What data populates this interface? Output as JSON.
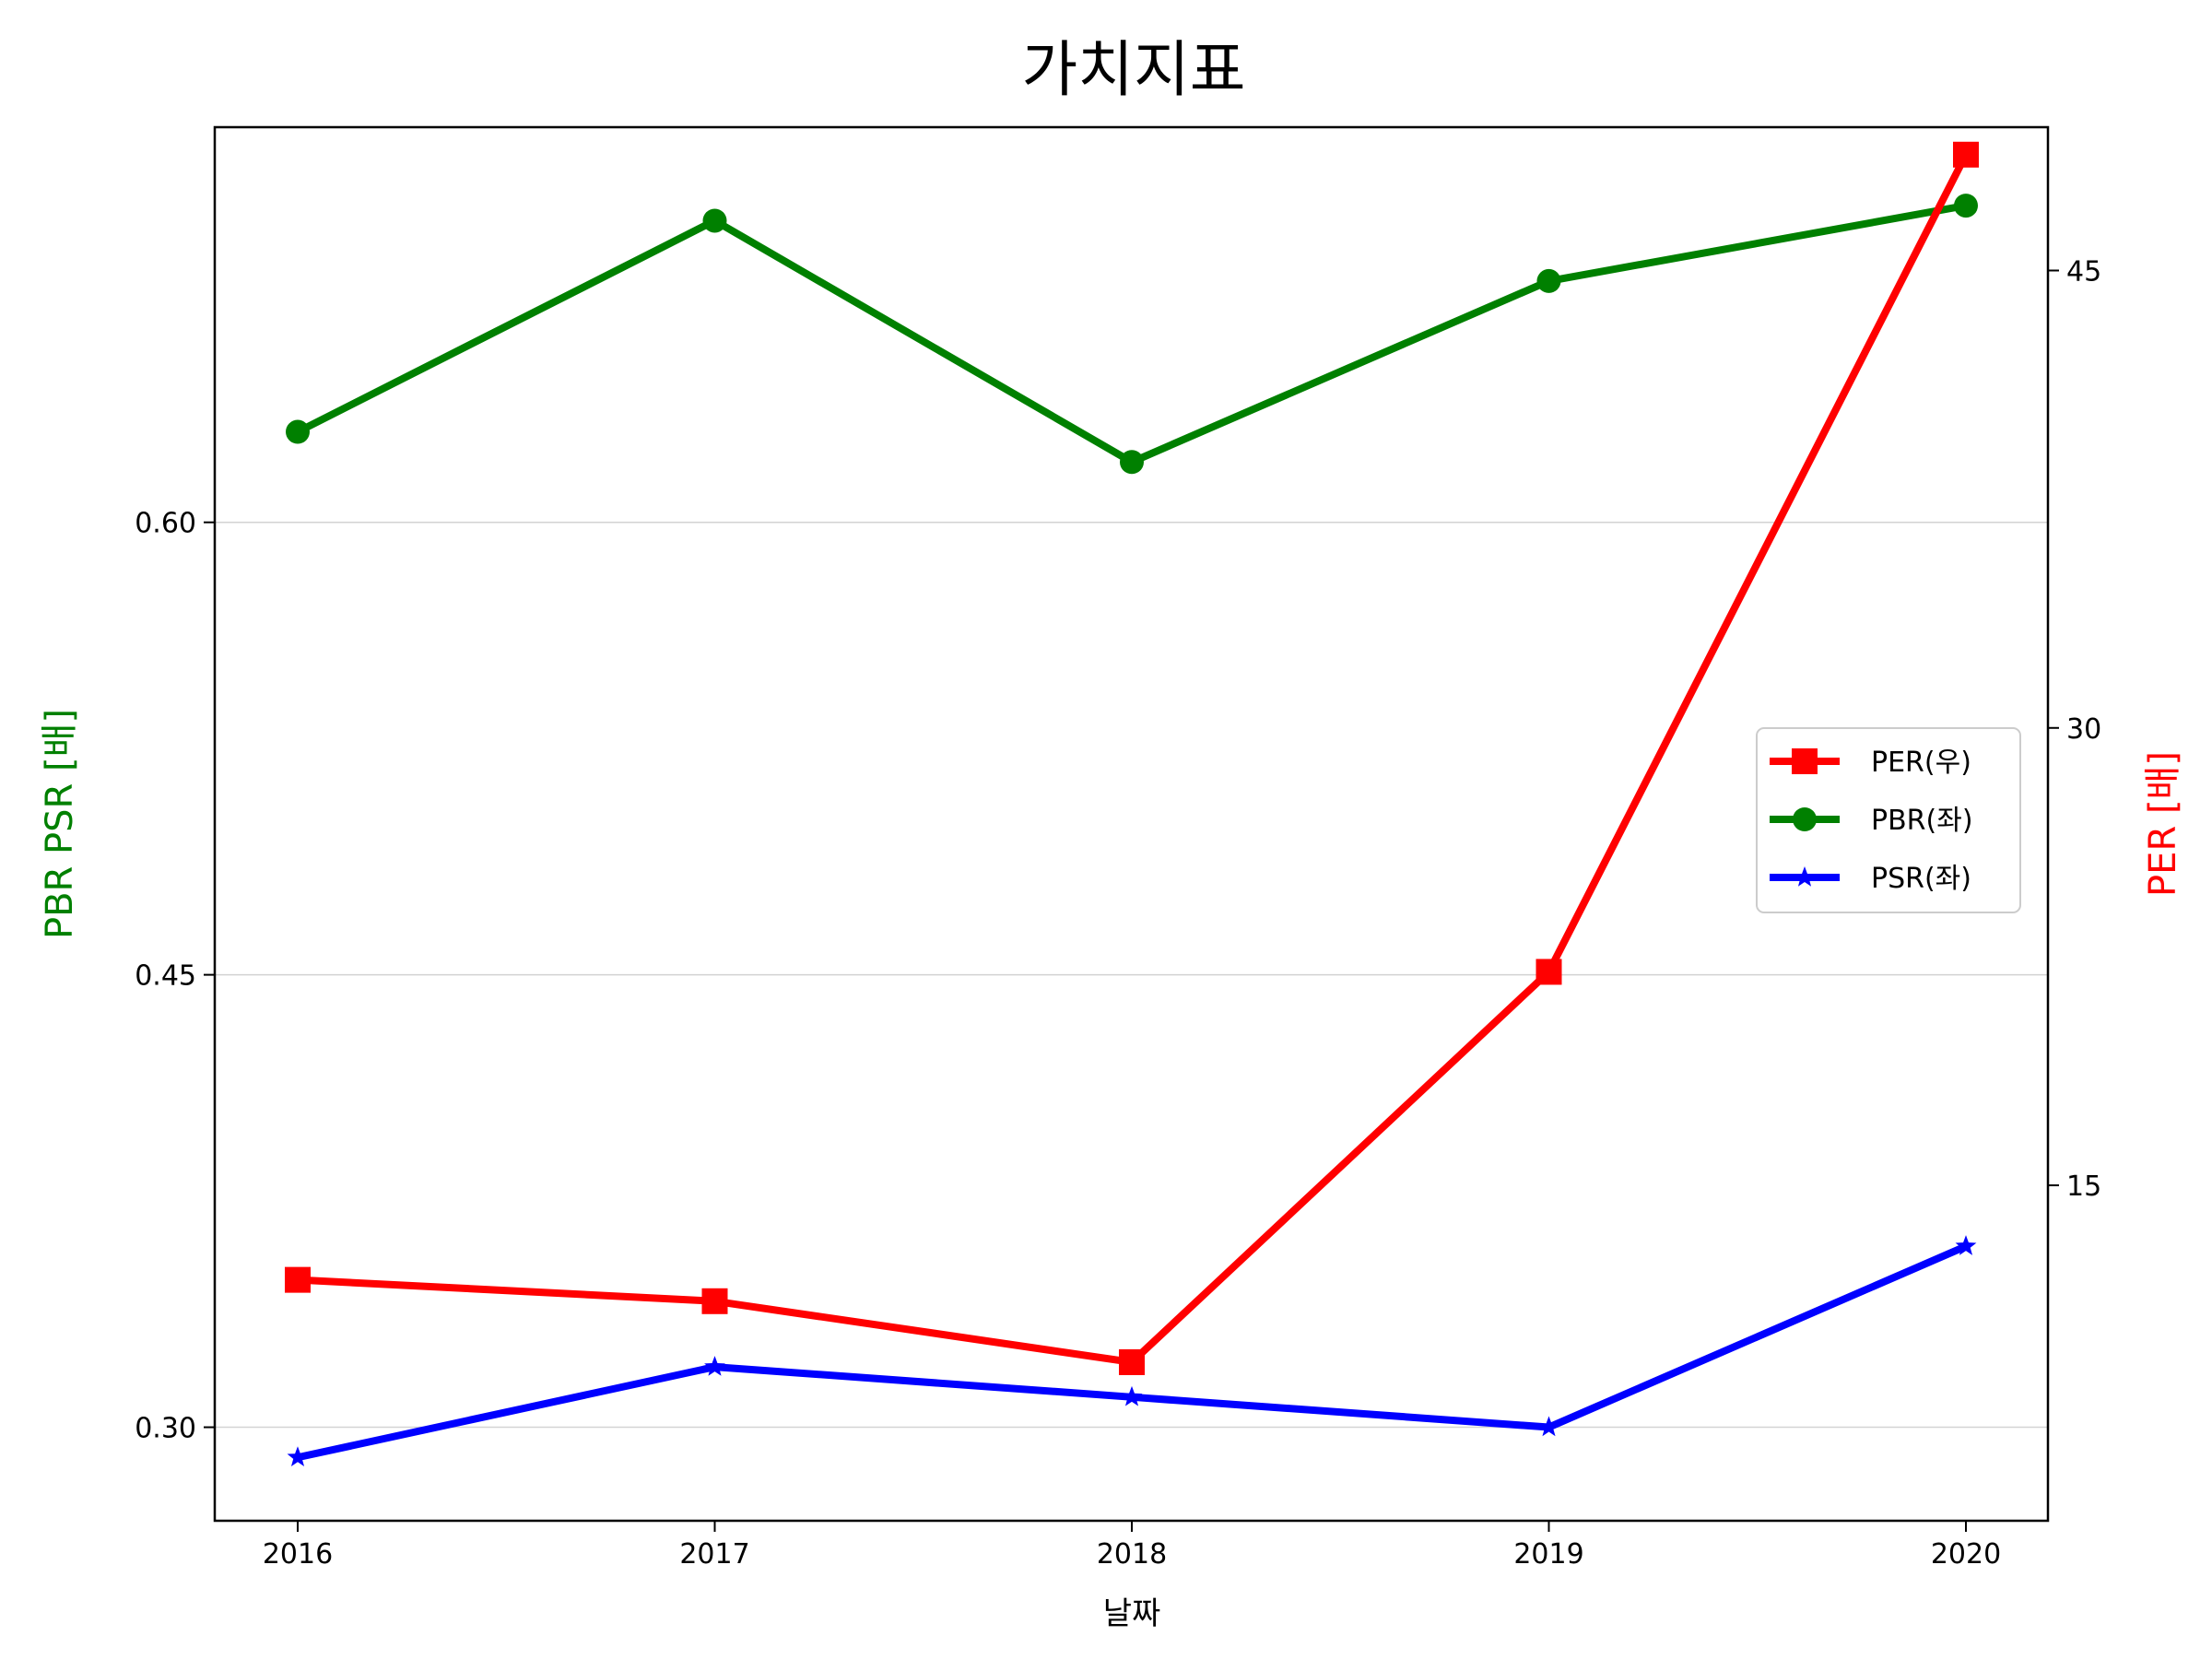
{
  "chart_data": {
    "type": "line",
    "title": "가치지표",
    "xlabel": "날짜",
    "ylabel_left": "PBR PSR [배]",
    "ylabel_right": "PER [배]",
    "categories": [
      "2016",
      "2017",
      "2018",
      "2019",
      "2020"
    ],
    "y_left_ticks": [
      "0.30",
      "0.45",
      "0.60"
    ],
    "y_left_range": [
      0.269,
      0.731
    ],
    "y_right_ticks": [
      "15",
      "30",
      "45"
    ],
    "y_right_range": [
      4.0,
      49.7
    ],
    "grid": "horizontal (left axis)",
    "legend_position": "center-right",
    "series": [
      {
        "name": "PER(우)",
        "axis": "right",
        "color": "#ff0000",
        "marker": "square",
        "values": [
          11.9,
          11.2,
          9.2,
          22.0,
          48.8
        ]
      },
      {
        "name": "PBR(좌)",
        "axis": "left",
        "color": "#008000",
        "marker": "circle",
        "values": [
          0.63,
          0.7,
          0.62,
          0.68,
          0.705
        ]
      },
      {
        "name": "PSR(좌)",
        "axis": "left",
        "color": "#0000ff",
        "marker": "star",
        "values": [
          0.29,
          0.32,
          0.31,
          0.3,
          0.36
        ]
      }
    ],
    "legend_order": [
      "PER(우)",
      "PBR(좌)",
      "PSR(좌)"
    ]
  }
}
